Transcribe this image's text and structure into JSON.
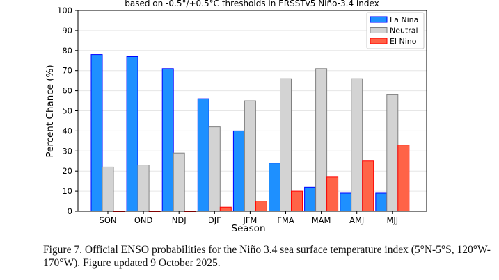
{
  "chart_data": {
    "type": "bar",
    "title": "based on -0.5°/+0.5°C thresholds in ERSSTv5 Niño-3.4 index",
    "xlabel": "Season",
    "ylabel": "Percent Chance (%)",
    "ylim": [
      0,
      100
    ],
    "yticks": [
      "0",
      "10",
      "20",
      "30",
      "40",
      "50",
      "60",
      "70",
      "80",
      "90",
      "100"
    ],
    "grid": true,
    "legend_position": "top-right",
    "categories": [
      "SON",
      "OND",
      "NDJ",
      "DJF",
      "JFM",
      "FMA",
      "MAM",
      "AMJ",
      "MJJ"
    ],
    "series": [
      {
        "name": "La Nina",
        "color": "#1e90ff",
        "edge": "#0000ff",
        "values": [
          78,
          77,
          71,
          56,
          40,
          24,
          12,
          9,
          9
        ]
      },
      {
        "name": "Neutral",
        "color": "#d3d3d3",
        "edge": "#808080",
        "values": [
          22,
          23,
          29,
          42,
          55,
          66,
          71,
          66,
          58
        ]
      },
      {
        "name": "El Nino",
        "color": "#ff6347",
        "edge": "#ff0000",
        "values": [
          0,
          0,
          0,
          2,
          5,
          10,
          17,
          25,
          33
        ]
      }
    ]
  },
  "caption": "Figure 7. Official ENSO probabilities for the Niño 3.4 sea surface temperature index (5°N-5°S, 120°W-170°W). Figure updated 9 October 2025."
}
